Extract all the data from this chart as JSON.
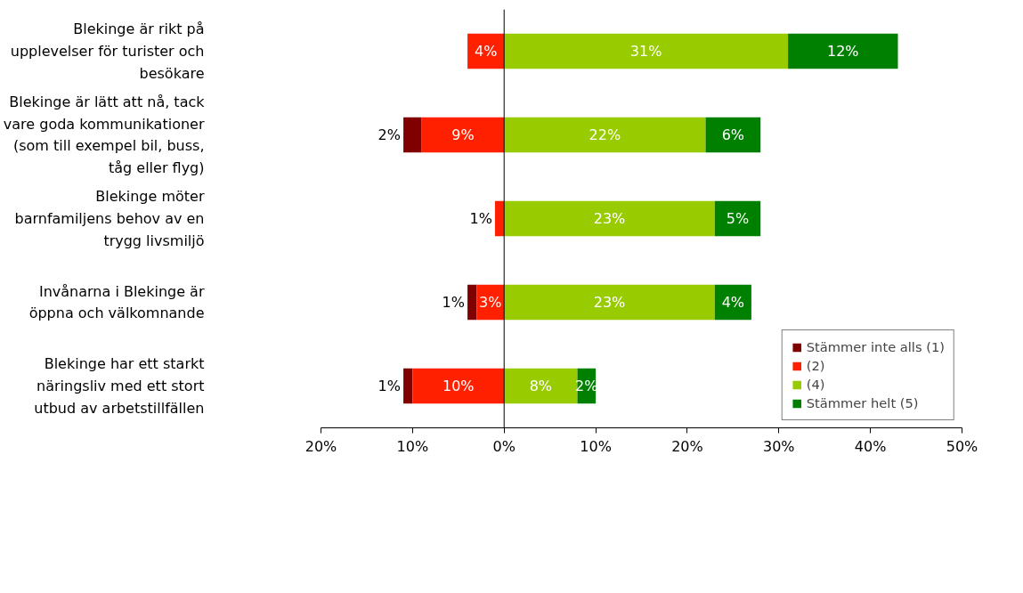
{
  "chart_data": {
    "type": "bar",
    "orientation": "horizontal",
    "categories": [
      "Blekinge är rikt på\nupplevelser för turister och\nbesökare",
      "Blekinge är lätt att nå, tack\nvare goda kommunikationer\n(som till exempel bil, buss,\ntåg eller flyg)",
      "Blekinge möter\nbarnfamiljens behov av en\ntrygg livsmiljö",
      "Invånarna i Blekinge är\nöppna och välkomnande",
      "Blekinge har ett starkt\nnäringsliv med ett stort\nutbud av arbetstillfällen"
    ],
    "series": [
      {
        "name": "Stämmer inte alls (1)",
        "color": "#800000",
        "values": [
          null,
          2,
          null,
          1,
          1
        ],
        "base": [
          null,
          -11,
          null,
          -4,
          -11
        ],
        "value_labels": [
          null,
          "2%",
          null,
          "1%",
          "1%"
        ]
      },
      {
        "name": "(2)",
        "color": "#ff2000",
        "values": [
          4,
          9,
          1,
          3,
          10
        ],
        "base": [
          -4,
          -9,
          -1,
          -3,
          -10
        ],
        "value_labels": [
          "4%",
          "9%",
          "1%",
          "3%",
          "10%"
        ]
      },
      {
        "name": "(4)",
        "color": "#99cc00",
        "values": [
          31,
          22,
          23,
          23,
          8
        ],
        "base": [
          0,
          0,
          0,
          0,
          0
        ],
        "value_labels": [
          "31%",
          "22%",
          "23%",
          "23%",
          "8%"
        ]
      },
      {
        "name": "Stämmer helt (5)",
        "color": "#008000",
        "values": [
          12,
          6,
          5,
          4,
          2
        ],
        "base": [
          31,
          22,
          23,
          23,
          8
        ],
        "value_labels": [
          "12%",
          "6%",
          "5%",
          "4%",
          "2%"
        ]
      }
    ],
    "xlim": [
      -20,
      50
    ],
    "xticks": [
      {
        "value": -20,
        "label": "20%"
      },
      {
        "value": -10,
        "label": "10%"
      },
      {
        "value": 0,
        "label": "0%"
      },
      {
        "value": 10,
        "label": "10%"
      },
      {
        "value": 20,
        "label": "20%"
      },
      {
        "value": 30,
        "label": "30%"
      },
      {
        "value": 40,
        "label": "40%"
      },
      {
        "value": 50,
        "label": "50%"
      }
    ],
    "legend": "bottom right"
  }
}
